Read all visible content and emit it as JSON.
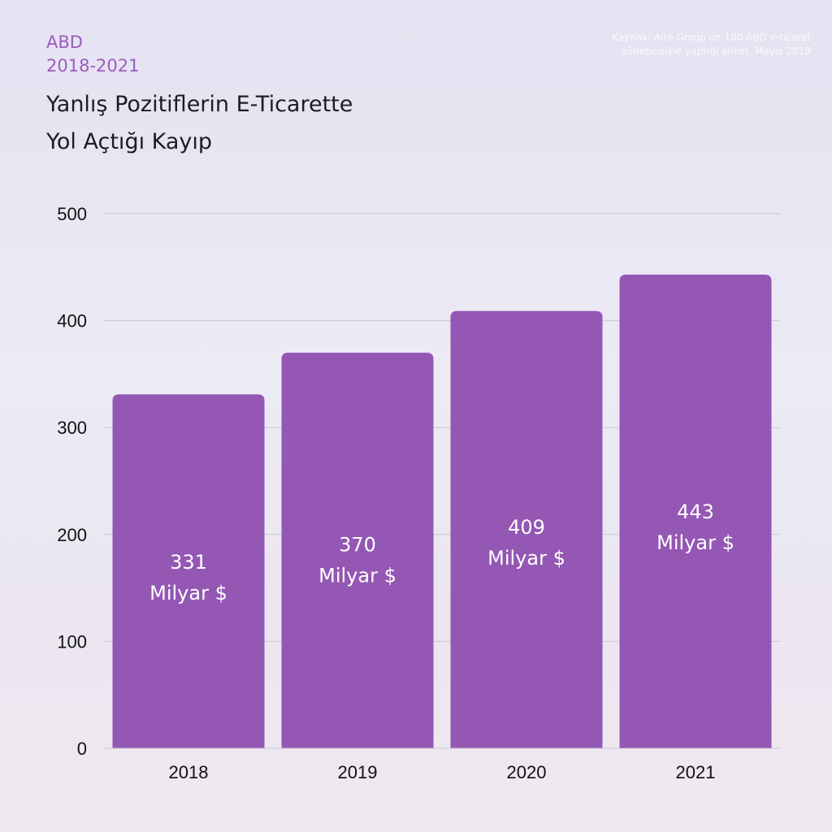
{
  "header": {
    "region": "ABD",
    "period": "2018-2021",
    "title_line1": "Yanlış Pozitiflerin E-Ticarette",
    "title_line2": "Yol Açtığı Kayıp"
  },
  "source_note": "Kaynak: Aite Group'un 100 ABD e-ticaret yöneticisiyle yaptığı anket, Mayıs 2019",
  "colors": {
    "bar": "#9457b4",
    "accent": "#9b5bbf",
    "grid": "#c9c7d6"
  },
  "chart_data": {
    "type": "bar",
    "title": "Yanlış Pozitiflerin E-Ticarette Yol Açtığı Kayıp",
    "categories": [
      "2018",
      "2019",
      "2020",
      "2021"
    ],
    "values": [
      331,
      370,
      409,
      443
    ],
    "value_labels": [
      "331",
      "370",
      "409",
      "443"
    ],
    "value_unit": "Milyar $",
    "yticks": [
      0,
      100,
      200,
      300,
      400,
      500
    ],
    "ylim": [
      0,
      500
    ],
    "xlabel": "",
    "ylabel": "",
    "grid": true,
    "legend": "none"
  }
}
